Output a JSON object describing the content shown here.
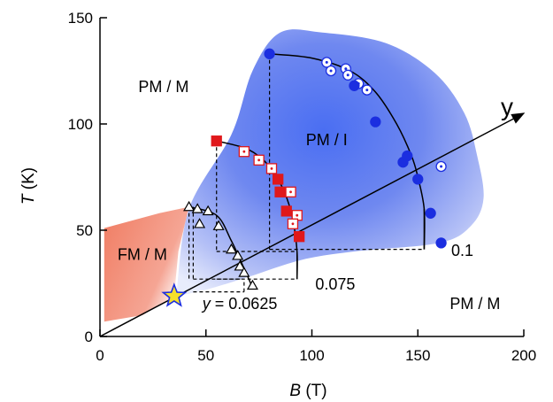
{
  "chart_data": {
    "type": "scatter",
    "title": "",
    "xlabel": {
      "var": "B",
      "unit": "(T)"
    },
    "ylabel": {
      "var": "T",
      "unit": "(K)"
    },
    "xlim": [
      0,
      200
    ],
    "ylim": [
      0,
      150
    ],
    "xticks": [
      0,
      50,
      100,
      150,
      200
    ],
    "yticks": [
      0,
      50,
      100,
      150
    ],
    "grid": false,
    "legend": "none",
    "colors": {
      "FM / M": "#f07c62",
      "PM / I": "#4d6fe8",
      "y = 0.0625": "#000000",
      "0.075": "#e0181b",
      "0.1": "#1b2ee0",
      "star": "#f5e02a"
    },
    "region_labels": [
      {
        "text": "PM / M",
        "x": 30,
        "y": 115
      },
      {
        "text": "PM / I",
        "x": 107,
        "y": 90
      },
      {
        "text": "FM / M",
        "x": 20,
        "y": 36
      },
      {
        "text": "PM / M",
        "x": 177,
        "y": 13
      }
    ],
    "y_axis_label": "y",
    "y_axis_line": [
      [
        0,
        0
      ],
      [
        200,
        105
      ]
    ],
    "composition_labels": [
      {
        "text": "y = 0.0625",
        "x": 66,
        "y": 13
      },
      {
        "text": "0.075",
        "x": 111,
        "y": 22
      },
      {
        "text": "0.1",
        "x": 171,
        "y": 38
      }
    ],
    "series": [
      {
        "name": "y = 0.0625",
        "marker": "triangle",
        "points_open": [
          [
            42,
            61
          ],
          [
            46,
            60
          ],
          [
            51,
            59
          ],
          [
            47,
            53
          ],
          [
            56,
            52
          ],
          [
            62,
            41
          ],
          [
            65,
            38
          ],
          [
            66,
            33
          ],
          [
            68,
            30
          ],
          [
            72,
            24
          ]
        ],
        "phase_boundary": [
          [
            42,
            61
          ],
          [
            55,
            57
          ],
          [
            62,
            45
          ],
          [
            68,
            32
          ],
          [
            72,
            23
          ]
        ],
        "plateau_T": 27,
        "foot_B": [
          44,
          63,
          67
        ]
      },
      {
        "name": "0.075",
        "marker": "square",
        "points_filled": [
          [
            55,
            92
          ],
          [
            84,
            74
          ],
          [
            85,
            68
          ],
          [
            88,
            59
          ],
          [
            94,
            47
          ]
        ],
        "points_open": [
          [
            68,
            87
          ],
          [
            75,
            83
          ],
          [
            81,
            79
          ],
          [
            90,
            68
          ],
          [
            93,
            57
          ],
          [
            91,
            53
          ]
        ],
        "phase_boundary": [
          [
            55,
            92
          ],
          [
            70,
            88
          ],
          [
            80,
            80
          ],
          [
            87,
            68
          ],
          [
            91,
            55
          ],
          [
            93,
            40
          ],
          [
            93,
            27
          ]
        ],
        "plateau_T": 40,
        "foot_B": [
          55,
          92
        ]
      },
      {
        "name": "0.1",
        "marker": "circle",
        "points_filled": [
          [
            80,
            133
          ],
          [
            120,
            118
          ],
          [
            130,
            101
          ],
          [
            143,
            82
          ],
          [
            145,
            85
          ],
          [
            150,
            74
          ],
          [
            156,
            58
          ],
          [
            161,
            44
          ]
        ],
        "points_open": [
          [
            107,
            129
          ],
          [
            109,
            125
          ],
          [
            116,
            126
          ],
          [
            117,
            123
          ],
          [
            122,
            119
          ],
          [
            126,
            116
          ],
          [
            161,
            80
          ]
        ],
        "phase_boundary": [
          [
            80,
            133
          ],
          [
            100,
            131
          ],
          [
            118,
            125
          ],
          [
            130,
            115
          ],
          [
            140,
            100
          ],
          [
            147,
            85
          ],
          [
            150,
            75
          ],
          [
            153,
            60
          ],
          [
            153,
            41
          ]
        ],
        "plateau_T": 41,
        "foot_B": [
          80,
          152
        ]
      }
    ],
    "tricritical_star": [
      35,
      19
    ]
  }
}
